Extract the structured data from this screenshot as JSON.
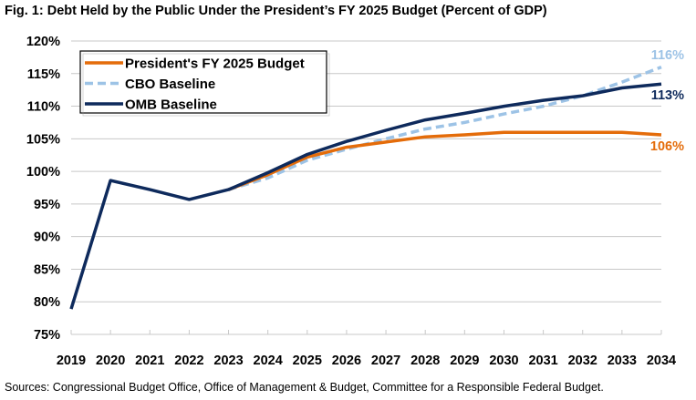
{
  "title": "Fig. 1: Debt Held by the Public Under the President’s FY 2025 Budget (Percent of GDP)",
  "source": "Sources: Congressional Budget Office, Office of Management & Budget, Committee for a Responsible Federal Budget.",
  "chart_data": {
    "type": "line",
    "title": "Fig. 1: Debt Held by the Public Under the President’s FY 2025 Budget (Percent of GDP)",
    "x": [
      2019,
      2020,
      2021,
      2022,
      2023,
      2024,
      2025,
      2026,
      2027,
      2028,
      2029,
      2030,
      2031,
      2032,
      2033,
      2034
    ],
    "ylim": [
      75,
      120
    ],
    "yticks": [
      "75%",
      "80%",
      "85%",
      "90%",
      "95%",
      "100%",
      "105%",
      "110%",
      "115%",
      "120%"
    ],
    "grid": true,
    "legend_position": "top-left",
    "series": [
      {
        "name": "President's FY 2025 Budget",
        "color": "#e46c0a",
        "style": "solid",
        "values": [
          null,
          null,
          null,
          null,
          97.2,
          99.5,
          102.2,
          103.7,
          104.5,
          105.3,
          105.6,
          106.0,
          106.0,
          106.0,
          106.0,
          105.6
        ],
        "end_label": "106%"
      },
      {
        "name": "CBO Baseline",
        "color": "#9dc3e6",
        "style": "dashed",
        "values": [
          null,
          null,
          null,
          null,
          97.2,
          99.0,
          101.7,
          103.4,
          105.0,
          106.5,
          107.5,
          108.8,
          110.0,
          111.6,
          113.7,
          116.0
        ],
        "end_label": "116%"
      },
      {
        "name": "OMB Baseline",
        "color": "#0e2a5c",
        "style": "solid",
        "values": [
          78.9,
          98.6,
          97.2,
          95.7,
          97.2,
          99.8,
          102.6,
          104.6,
          106.3,
          107.9,
          108.9,
          110.0,
          110.9,
          111.6,
          112.8,
          113.4
        ],
        "end_label": "113%"
      }
    ]
  }
}
